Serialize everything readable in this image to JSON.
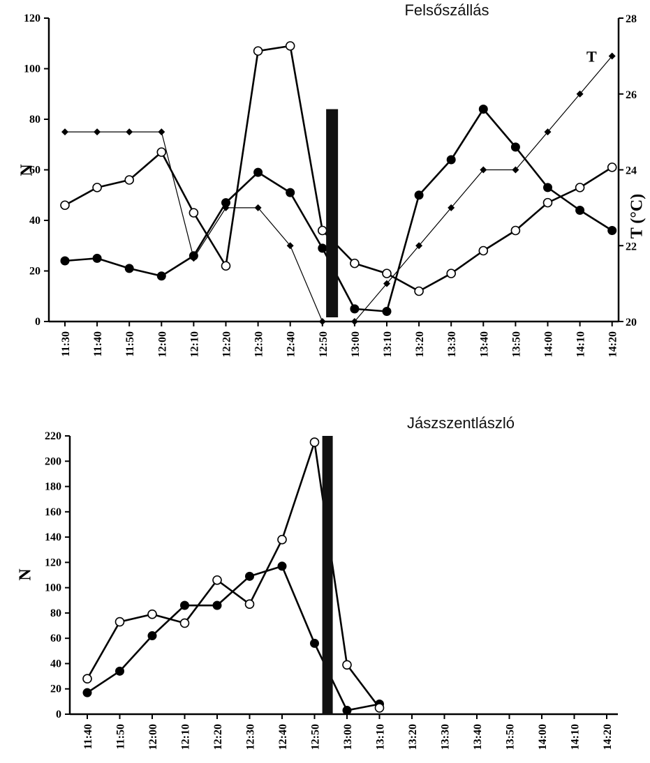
{
  "chart_data": [
    {
      "type": "line",
      "title": "Felsőszállás",
      "ylabel": "N",
      "y2label": "T (°C)",
      "ylim": [
        0,
        120
      ],
      "y_ticks": [
        "0",
        "20",
        "40",
        "60",
        "80",
        "100",
        "120"
      ],
      "y2lim": [
        20,
        28
      ],
      "y2_ticks": [
        "20",
        "22",
        "24",
        "26",
        "28"
      ],
      "x": [
        "11:30",
        "11:40",
        "11:50",
        "12:00",
        "12:10",
        "12:20",
        "12:30",
        "12:40",
        "12:50",
        "13:00",
        "13:10",
        "13:20",
        "13:30",
        "13:40",
        "13:50",
        "14:00",
        "14:10",
        "14:20"
      ],
      "event_x": 8.3,
      "event_top": 84,
      "series": [
        {
          "name": "",
          "marker": "filled-circle",
          "axis": "left",
          "values": [
            24,
            25,
            21,
            18,
            26,
            47,
            59,
            51,
            29,
            5,
            4,
            50,
            64,
            84,
            69,
            53,
            44,
            36
          ]
        },
        {
          "name": "",
          "marker": "open-circle",
          "axis": "left",
          "values": [
            46,
            53,
            56,
            67,
            43,
            22,
            107,
            109,
            36,
            23,
            19,
            12,
            19,
            28,
            36,
            47,
            53,
            61
          ]
        },
        {
          "name": "T",
          "marker": "diamond",
          "axis": "right",
          "values": [
            25,
            25,
            25,
            25,
            21.67,
            23,
            23,
            22,
            20,
            20,
            21,
            22,
            23,
            24,
            24,
            25,
            26,
            27
          ]
        }
      ]
    },
    {
      "type": "line",
      "title": "Jászszentlászló",
      "ylabel": "N",
      "ylim": [
        0,
        220
      ],
      "y_ticks": [
        "0",
        "20",
        "40",
        "60",
        "80",
        "100",
        "120",
        "140",
        "160",
        "180",
        "200",
        "220"
      ],
      "x": [
        "11:40",
        "11:50",
        "12:00",
        "12:10",
        "12:20",
        "12:30",
        "12:40",
        "12:50",
        "13:00",
        "13:10",
        "13:20",
        "13:30",
        "13:40",
        "13:50",
        "14:00",
        "14:10",
        "14:20"
      ],
      "event_x": 7.4,
      "event_top": 220,
      "series": [
        {
          "name": "",
          "marker": "filled-circle",
          "values": [
            17,
            34,
            62,
            86,
            86,
            109,
            117,
            56,
            3,
            8,
            null,
            null,
            null,
            null,
            null,
            null,
            null
          ]
        },
        {
          "name": "",
          "marker": "open-circle",
          "values": [
            28,
            73,
            79,
            72,
            106,
            87,
            138,
            215,
            39,
            5,
            null,
            null,
            null,
            null,
            null,
            null,
            null
          ]
        }
      ]
    }
  ]
}
